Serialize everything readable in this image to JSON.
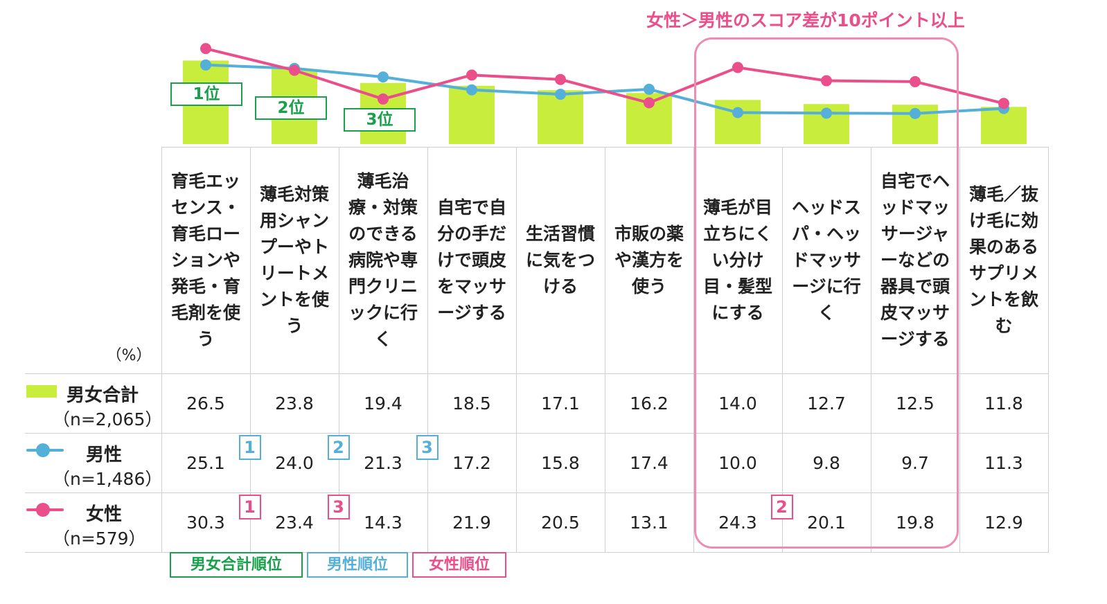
{
  "annotation": "女性＞男性のスコア差が10ポイント以上",
  "unit_label": "（%）",
  "rank_labels": [
    "1位",
    "2位",
    "3位"
  ],
  "legend": {
    "total_rank": "男女合計順位",
    "male_rank": "男性順位",
    "female_rank": "女性順位"
  },
  "rows": [
    {
      "name": "男女合計",
      "n": "（n=2,065）"
    },
    {
      "name": "男性",
      "n": "（n=1,486）"
    },
    {
      "name": "女性",
      "n": "（n=579）"
    }
  ],
  "colors": {
    "bar": "#c9ed3c",
    "male": "#54afd9",
    "female": "#ea4e8b",
    "rank_total": "#19a04b",
    "frame": "#f08cb4"
  },
  "chart_data": {
    "type": "bar",
    "categories": [
      "育毛エッセンス・育毛ローションや発毛・育毛剤を使う",
      "薄毛対策用シャンプーやトリートメントを使う",
      "薄毛治療・対策のできる病院や専門クリニックに行く",
      "自宅で自分の手だけで頭皮をマッサージする",
      "生活習慣に気をつける",
      "市販の薬や漢方を使う",
      "薄毛が目立ちにくい分け目・髪型にする",
      "ヘッドスパ・ヘッドマッサージに行く",
      "自宅でヘッドマッサージャーなどの器具で頭皮マッサージする",
      "薄毛／抜け毛に効果のあるサプリメントを飲む"
    ],
    "series": [
      {
        "name": "男女合計",
        "type": "bar",
        "values": [
          26.5,
          23.8,
          19.4,
          18.5,
          17.1,
          16.2,
          14.0,
          12.7,
          12.5,
          11.8
        ],
        "labels": [
          "26.5",
          "23.8",
          "19.4",
          "18.5",
          "17.1",
          "16.2",
          "14.0",
          "12.7",
          "12.5",
          "11.8"
        ]
      },
      {
        "name": "男性",
        "type": "line",
        "values": [
          25.1,
          24.0,
          21.3,
          17.2,
          15.8,
          17.4,
          10.0,
          9.8,
          9.7,
          11.3
        ],
        "labels": [
          "25.1",
          "24.0",
          "21.3",
          "17.2",
          "15.8",
          "17.4",
          "10.0",
          "9.8",
          "9.7",
          "11.3"
        ]
      },
      {
        "name": "女性",
        "type": "line",
        "values": [
          30.3,
          23.4,
          14.3,
          21.9,
          20.5,
          13.1,
          24.3,
          20.1,
          19.8,
          12.9
        ],
        "labels": [
          "30.3",
          "23.4",
          "14.3",
          "21.9",
          "20.5",
          "13.1",
          "24.3",
          "20.1",
          "19.8",
          "12.9"
        ]
      }
    ],
    "ranks": {
      "male": [
        {
          "category_index": 0,
          "rank": "1"
        },
        {
          "category_index": 1,
          "rank": "2"
        },
        {
          "category_index": 2,
          "rank": "3"
        }
      ],
      "female": [
        {
          "category_index": 0,
          "rank": "1"
        },
        {
          "category_index": 1,
          "rank": "3"
        },
        {
          "category_index": 6,
          "rank": "2"
        }
      ]
    },
    "highlighted_categories": [
      6,
      7,
      8
    ],
    "grid": false,
    "legend_placement": "table-row-labels"
  }
}
